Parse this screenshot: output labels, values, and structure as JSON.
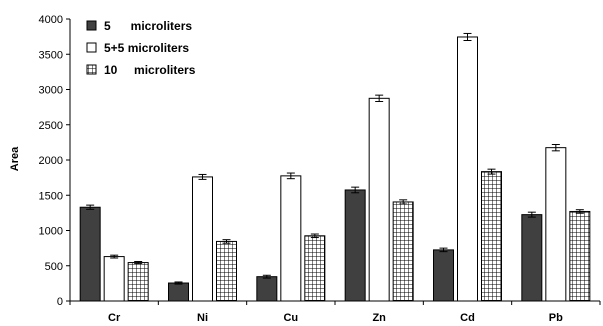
{
  "chart_data": {
    "type": "bar",
    "title": "",
    "xlabel": "",
    "ylabel": "Area",
    "ylim": [
      0,
      4000
    ],
    "yticks": [
      0,
      500,
      1000,
      1500,
      2000,
      2500,
      3000,
      3500,
      4000
    ],
    "grid": false,
    "legend_position": "top-left",
    "categories": [
      "Cr",
      "Ni",
      "Cu",
      "Zn",
      "Cd",
      "Pb"
    ],
    "series": [
      {
        "name": "5      microliters",
        "style": "solid",
        "color": "#404040",
        "values": [
          1330,
          255,
          345,
          1575,
          725,
          1225
        ],
        "errors": [
          30,
          15,
          20,
          40,
          25,
          35
        ]
      },
      {
        "name": "5+5 microliters",
        "style": "white",
        "color": "#ffffff",
        "values": [
          630,
          1760,
          1775,
          2875,
          3745,
          2175
        ],
        "errors": [
          20,
          35,
          40,
          45,
          50,
          45
        ]
      },
      {
        "name": "10     microliters",
        "style": "grid-pattern",
        "color": "#000000",
        "values": [
          545,
          845,
          925,
          1405,
          1835,
          1270
        ],
        "errors": [
          15,
          25,
          25,
          30,
          35,
          25
        ]
      }
    ]
  }
}
